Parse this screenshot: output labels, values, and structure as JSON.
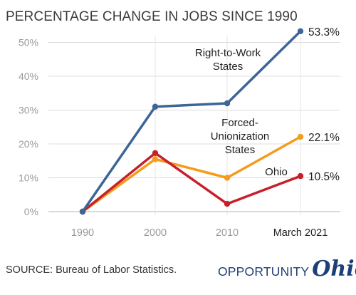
{
  "title": "PERCENTAGE CHANGE IN JOBS SINCE 1990",
  "source": "SOURCE: Bureau of Labor Statistics.",
  "logo": {
    "word": "OPPORTUNITY",
    "script": "Ohio"
  },
  "chart_data": {
    "type": "line",
    "title": "PERCENTAGE CHANGE IN JOBS SINCE 1990",
    "categories": [
      "1990",
      "2000",
      "2010",
      "March 2021"
    ],
    "ylim": [
      0,
      55
    ],
    "yticks": [
      0,
      10,
      20,
      30,
      40,
      50
    ],
    "ytick_labels": [
      "0%",
      "10%",
      "20%",
      "30%",
      "40%",
      "50%"
    ],
    "grid": "horizontal",
    "series": [
      {
        "name": "Right-to-Work States",
        "label_lines": [
          "Right-to-Work",
          "States"
        ],
        "values": [
          0,
          31,
          32,
          53.3
        ],
        "end_label": "53.3%",
        "color": "#3d6598"
      },
      {
        "name": "Forced-Unionization States",
        "label_lines": [
          "Forced-",
          "Unionization",
          "States"
        ],
        "values": [
          0,
          15.5,
          10,
          22.1
        ],
        "end_label": "22.1%",
        "color": "#f59c1a"
      },
      {
        "name": "Ohio",
        "label_lines": [
          "Ohio"
        ],
        "values": [
          0,
          17.3,
          2.3,
          10.5
        ],
        "end_label": "10.5%",
        "color": "#c8202a"
      }
    ]
  }
}
